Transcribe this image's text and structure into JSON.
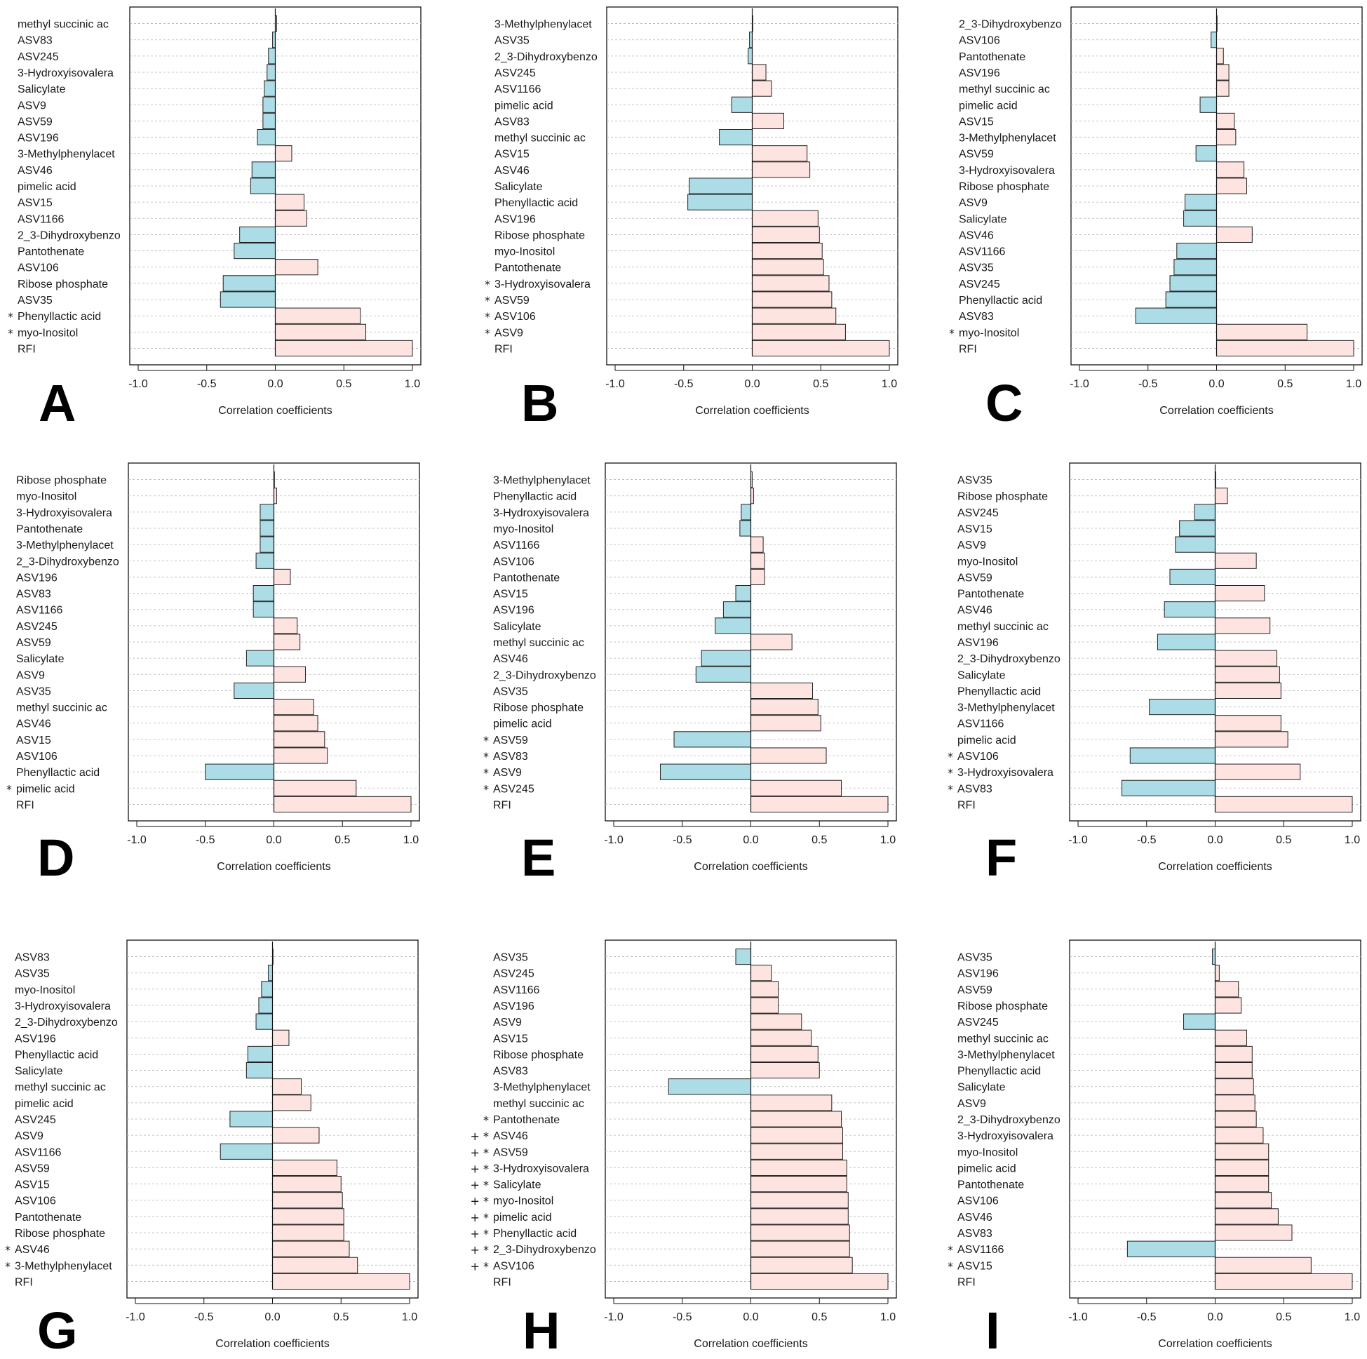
{
  "chart_data": [
    {
      "type": "bar",
      "panel": "A",
      "xlabel": "Correlation coefficients",
      "xlim": [
        -1.0,
        1.0
      ],
      "xticks": [
        "-1.0",
        "-0.5",
        "0.0",
        "0.5",
        "1.0"
      ],
      "categories": [
        "methyl succinic ac",
        "ASV83",
        "ASV245",
        "3-Hydroxyisovalera",
        "Salicylate",
        "ASV9",
        "ASV59",
        "ASV196",
        "3-Methylphenylacet",
        "ASV46",
        "pimelic acid",
        "ASV15",
        "ASV1166",
        "2_3-Dihydroxybenzo",
        "Pantothenate",
        "ASV106",
        "Ribose phosphate",
        "ASV35",
        "Phenyllactic acid",
        "myo-Inositol",
        "RFI"
      ],
      "values": [
        0.01,
        -0.02,
        -0.05,
        -0.06,
        -0.08,
        -0.09,
        -0.09,
        -0.13,
        0.12,
        -0.17,
        -0.18,
        0.21,
        0.23,
        -0.26,
        -0.3,
        0.31,
        -0.38,
        -0.4,
        0.62,
        0.66,
        1.0
      ],
      "markers": [
        "",
        "",
        "",
        "",
        "",
        "",
        "",
        "",
        "",
        "",
        "",
        "",
        "",
        "",
        "",
        "",
        "",
        "",
        "*",
        "*",
        ""
      ]
    },
    {
      "type": "bar",
      "panel": "B",
      "xlabel": "Correlation coefficients",
      "xlim": [
        -1.0,
        1.0
      ],
      "xticks": [
        "-1.0",
        "-0.5",
        "0.0",
        "0.5",
        "1.0"
      ],
      "categories": [
        "3-Methylphenylacet",
        "ASV35",
        "2_3-Dihydroxybenzo",
        "ASV245",
        "ASV1166",
        "pimelic acid",
        "ASV83",
        "methyl succinic ac",
        "ASV15",
        "ASV46",
        "Salicylate",
        "Phenyllactic acid",
        "ASV196",
        "Ribose phosphate",
        "myo-Inositol",
        "Pantothenate",
        "3-Hydroxyisovalera",
        "ASV59",
        "ASV106",
        "ASV9",
        "RFI"
      ],
      "values": [
        0.0,
        -0.02,
        -0.03,
        0.1,
        0.14,
        -0.15,
        0.23,
        -0.24,
        0.4,
        0.42,
        -0.46,
        -0.47,
        0.48,
        0.49,
        0.51,
        0.52,
        0.56,
        0.58,
        0.61,
        0.68,
        1.0
      ],
      "markers": [
        "",
        "",
        "",
        "",
        "",
        "",
        "",
        "",
        "",
        "",
        "",
        "",
        "",
        "",
        "",
        "",
        "*",
        "*",
        "*",
        "*",
        ""
      ]
    },
    {
      "type": "bar",
      "panel": "C",
      "xlabel": "Correlation coefficients",
      "xlim": [
        -1.0,
        1.0
      ],
      "xticks": [
        "-1.0",
        "-0.5",
        "0.0",
        "0.5",
        "1.0"
      ],
      "categories": [
        "2_3-Dihydroxybenzo",
        "ASV106",
        "Pantothenate",
        "ASV196",
        "methyl succinic ac",
        "pimelic acid",
        "ASV15",
        "3-Methylphenylacet",
        "ASV59",
        "3-Hydroxyisovalera",
        "Ribose phosphate",
        "ASV9",
        "Salicylate",
        "ASV46",
        "ASV1166",
        "ASV35",
        "ASV245",
        "Phenyllactic acid",
        "ASV83",
        "myo-Inositol",
        "RFI"
      ],
      "values": [
        0.0,
        -0.04,
        0.05,
        0.09,
        0.09,
        -0.12,
        0.13,
        0.14,
        -0.15,
        0.2,
        0.22,
        -0.23,
        -0.24,
        0.26,
        -0.29,
        -0.31,
        -0.34,
        -0.37,
        -0.59,
        0.66,
        1.0
      ],
      "markers": [
        "",
        "",
        "",
        "",
        "",
        "",
        "",
        "",
        "",
        "",
        "",
        "",
        "",
        "",
        "",
        "",
        "",
        "",
        "",
        "*",
        ""
      ]
    },
    {
      "type": "bar",
      "panel": "D",
      "xlabel": "Correlation coefficients",
      "xlim": [
        -1.0,
        1.0
      ],
      "xticks": [
        "-1.0",
        "-0.5",
        "0.0",
        "0.5",
        "1.0"
      ],
      "categories": [
        "Ribose phosphate",
        "myo-Inositol",
        "3-Hydroxyisovalera",
        "Pantothenate",
        "3-Methylphenylacet",
        "2_3-Dihydroxybenzo",
        "ASV196",
        "ASV83",
        "ASV1166",
        "ASV245",
        "ASV59",
        "Salicylate",
        "ASV9",
        "ASV35",
        "methyl succinic ac",
        "ASV46",
        "ASV15",
        "ASV106",
        "Phenyllactic acid",
        "pimelic acid",
        "RFI"
      ],
      "values": [
        0.0,
        0.02,
        -0.1,
        -0.1,
        -0.1,
        -0.13,
        0.12,
        -0.15,
        -0.15,
        0.17,
        0.19,
        -0.2,
        0.23,
        -0.29,
        0.29,
        0.32,
        0.37,
        0.39,
        -0.5,
        0.6,
        1.0
      ],
      "markers": [
        "",
        "",
        "",
        "",
        "",
        "",
        "",
        "",
        "",
        "",
        "",
        "",
        "",
        "",
        "",
        "",
        "",
        "",
        "",
        "*",
        ""
      ]
    },
    {
      "type": "bar",
      "panel": "E",
      "xlabel": "Correlation coefficients",
      "xlim": [
        -1.0,
        1.0
      ],
      "xticks": [
        "-1.0",
        "-0.5",
        "0.0",
        "0.5",
        "1.0"
      ],
      "categories": [
        "3-Methylphenylacet",
        "Phenyllactic acid",
        "3-Hydroxyisovalera",
        "myo-Inositol",
        "ASV1166",
        "ASV106",
        "Pantothenate",
        "ASV15",
        "ASV196",
        "Salicylate",
        "methyl succinic ac",
        "ASV46",
        "2_3-Dihydroxybenzo",
        "ASV35",
        "Ribose phosphate",
        "pimelic acid",
        "ASV59",
        "ASV83",
        "ASV9",
        "ASV245",
        "RFI"
      ],
      "values": [
        0.01,
        0.02,
        -0.07,
        -0.08,
        0.09,
        0.1,
        0.1,
        -0.11,
        -0.2,
        -0.26,
        0.3,
        -0.36,
        -0.4,
        0.45,
        0.49,
        0.51,
        -0.56,
        0.55,
        -0.66,
        0.66,
        1.0
      ],
      "markers": [
        "",
        "",
        "",
        "",
        "",
        "",
        "",
        "",
        "",
        "",
        "",
        "",
        "",
        "",
        "",
        "",
        "*",
        "*",
        "*",
        "*",
        ""
      ]
    },
    {
      "type": "bar",
      "panel": "F",
      "xlabel": "Correlation coefficients",
      "xlim": [
        -1.0,
        1.0
      ],
      "xticks": [
        "-1.0",
        "-0.5",
        "0.0",
        "0.5",
        "1.0"
      ],
      "categories": [
        "ASV35",
        "Ribose phosphate",
        "ASV245",
        "ASV15",
        "ASV9",
        "myo-Inositol",
        "ASV59",
        "Pantothenate",
        "ASV46",
        "methyl succinic ac",
        "ASV196",
        "2_3-Dihydroxybenzo",
        "Salicylate",
        "Phenyllactic acid",
        "3-Methylphenylacet",
        "ASV1166",
        "pimelic acid",
        "ASV106",
        "3-Hydroxyisovalera",
        "ASV83",
        "RFI"
      ],
      "values": [
        0.0,
        0.09,
        -0.15,
        -0.26,
        -0.29,
        0.3,
        -0.33,
        0.36,
        -0.37,
        0.4,
        -0.42,
        0.45,
        0.47,
        0.48,
        -0.48,
        0.48,
        0.53,
        -0.62,
        0.62,
        -0.68,
        1.0
      ],
      "markers": [
        "",
        "",
        "",
        "",
        "",
        "",
        "",
        "",
        "",
        "",
        "",
        "",
        "",
        "",
        "",
        "",
        "",
        "*",
        "*",
        "*",
        ""
      ]
    },
    {
      "type": "bar",
      "panel": "G",
      "xlabel": "Correlation coefficients",
      "xlim": [
        -1.0,
        1.0
      ],
      "xticks": [
        "-1.0",
        "-0.5",
        "0.0",
        "0.5",
        "1.0"
      ],
      "categories": [
        "ASV83",
        "ASV35",
        "myo-Inositol",
        "3-Hydroxyisovalera",
        "2_3-Dihydroxybenzo",
        "ASV196",
        "Phenyllactic acid",
        "Salicylate",
        "methyl succinic ac",
        "pimelic acid",
        "ASV245",
        "ASV9",
        "ASV1166",
        "ASV59",
        "ASV15",
        "ASV106",
        "Pantothenate",
        "Ribose phosphate",
        "ASV46",
        "3-Methylphenylacet",
        "RFI"
      ],
      "values": [
        0.0,
        -0.03,
        -0.08,
        -0.1,
        -0.12,
        0.12,
        -0.18,
        -0.19,
        0.21,
        0.28,
        -0.31,
        0.34,
        -0.38,
        0.47,
        0.5,
        0.51,
        0.52,
        0.52,
        0.56,
        0.62,
        1.0
      ],
      "markers": [
        "",
        "",
        "",
        "",
        "",
        "",
        "",
        "",
        "",
        "",
        "",
        "",
        "",
        "",
        "",
        "",
        "",
        "",
        "*",
        "*",
        ""
      ]
    },
    {
      "type": "bar",
      "panel": "H",
      "xlabel": "Correlation coefficients",
      "xlim": [
        -1.0,
        1.0
      ],
      "xticks": [
        "-1.0",
        "-0.5",
        "0.0",
        "0.5",
        "1.0"
      ],
      "categories": [
        "ASV35",
        "ASV245",
        "ASV1166",
        "ASV196",
        "ASV9",
        "ASV15",
        "Ribose phosphate",
        "ASV83",
        "3-Methylphenylacet",
        "methyl succinic ac",
        "Pantothenate",
        "ASV46",
        "ASV59",
        "3-Hydroxyisovalera",
        "Salicylate",
        "myo-Inositol",
        "pimelic acid",
        "Phenyllactic acid",
        "2_3-Dihydroxybenzo",
        "ASV106",
        "RFI"
      ],
      "values": [
        -0.11,
        0.15,
        0.2,
        0.2,
        0.37,
        0.44,
        0.49,
        0.5,
        -0.6,
        0.59,
        0.66,
        0.67,
        0.67,
        0.7,
        0.7,
        0.71,
        0.71,
        0.72,
        0.72,
        0.74,
        1.0
      ],
      "markers": [
        "",
        "",
        "",
        "",
        "",
        "",
        "",
        "",
        "",
        "",
        "*",
        "+ *",
        "+ *",
        "+ *",
        "+ *",
        "+ *",
        "+ *",
        "+ *",
        "+ *",
        "+ *",
        ""
      ]
    },
    {
      "type": "bar",
      "panel": "I",
      "xlabel": "Correlation coefficients",
      "xlim": [
        -1.0,
        1.0
      ],
      "xticks": [
        "-1.0",
        "-0.5",
        "0.0",
        "0.5",
        "1.0"
      ],
      "categories": [
        "ASV35",
        "ASV196",
        "ASV59",
        "Ribose phosphate",
        "ASV245",
        "methyl succinic ac",
        "3-Methylphenylacet",
        "Phenyllactic acid",
        "Salicylate",
        "ASV9",
        "2_3-Dihydroxybenzo",
        "3-Hydroxyisovalera",
        "myo-Inositol",
        "pimelic acid",
        "Pantothenate",
        "ASV106",
        "ASV46",
        "ASV83",
        "ASV1166",
        "ASV15",
        "RFI"
      ],
      "values": [
        -0.02,
        0.03,
        0.17,
        0.19,
        -0.23,
        0.23,
        0.27,
        0.27,
        0.28,
        0.29,
        0.3,
        0.35,
        0.39,
        0.39,
        0.39,
        0.41,
        0.46,
        0.56,
        -0.64,
        0.7,
        1.0
      ],
      "markers": [
        "",
        "",
        "",
        "",
        "",
        "",
        "",
        "",
        "",
        "",
        "",
        "",
        "",
        "",
        "",
        "",
        "",
        "",
        "*",
        "*",
        ""
      ]
    }
  ],
  "colors": {
    "positive": "#fde4e0",
    "negative": "#acdce6",
    "grid": "#b5b5b5",
    "frame": "#000000"
  }
}
